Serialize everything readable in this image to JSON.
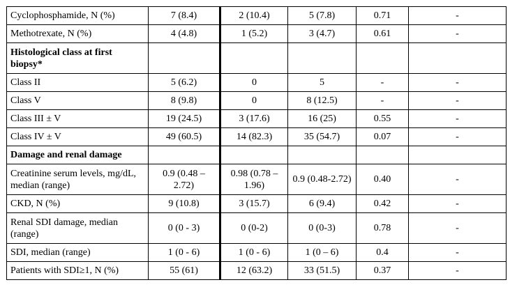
{
  "table": {
    "rows": [
      [
        "Cyclophosphamide, N (%)",
        "7 (8.4)",
        "2 (10.4)",
        "5 (7.8)",
        "0.71",
        "-"
      ],
      [
        "Methotrexate, N (%)",
        "4 (4.8)",
        "1 (5.2)",
        "3 (4.7)",
        "0.61",
        "-"
      ],
      [
        "Histological class at first biopsy*"
      ],
      [
        "Class II",
        "5 (6.2)",
        "0",
        "5",
        "-",
        "-"
      ],
      [
        "Class V",
        "8 (9.8)",
        "0",
        "8 (12.5)",
        "-",
        "-"
      ],
      [
        "Class III ± V",
        "19 (24.5)",
        "3 (17.6)",
        "16 (25)",
        "0.55",
        "-"
      ],
      [
        "Class IV ± V",
        "49 (60.5)",
        "14 (82.3)",
        "35 (54.7)",
        "0.07",
        "-"
      ],
      [
        "Damage and renal damage"
      ],
      [
        "Creatinine serum levels, mg/dL, median (range)",
        "0.9 (0.48 – 2.72)",
        "0.98 (0.78 – 1.96)",
        "0.9 (0.48-2.72)",
        "0.40",
        "-"
      ],
      [
        "CKD, N (%)",
        "9 (10.8)",
        "3 (15.7)",
        "6 (9.4)",
        "0.42",
        "-"
      ],
      [
        "Renal SDI damage, median (range)",
        "0 (0 - 3)",
        "0 (0-2)",
        "0 (0-3)",
        "0.78",
        "-"
      ],
      [
        "SDI, median (range)",
        "1 (0 - 6)",
        "1 (0 - 6)",
        "1 (0 – 6)",
        "0.4",
        "-"
      ],
      [
        "Patients with SDI≥1, N (%)",
        "55 (61)",
        "12 (63.2)",
        "33 (51.5)",
        "0.37",
        "-"
      ]
    ]
  }
}
